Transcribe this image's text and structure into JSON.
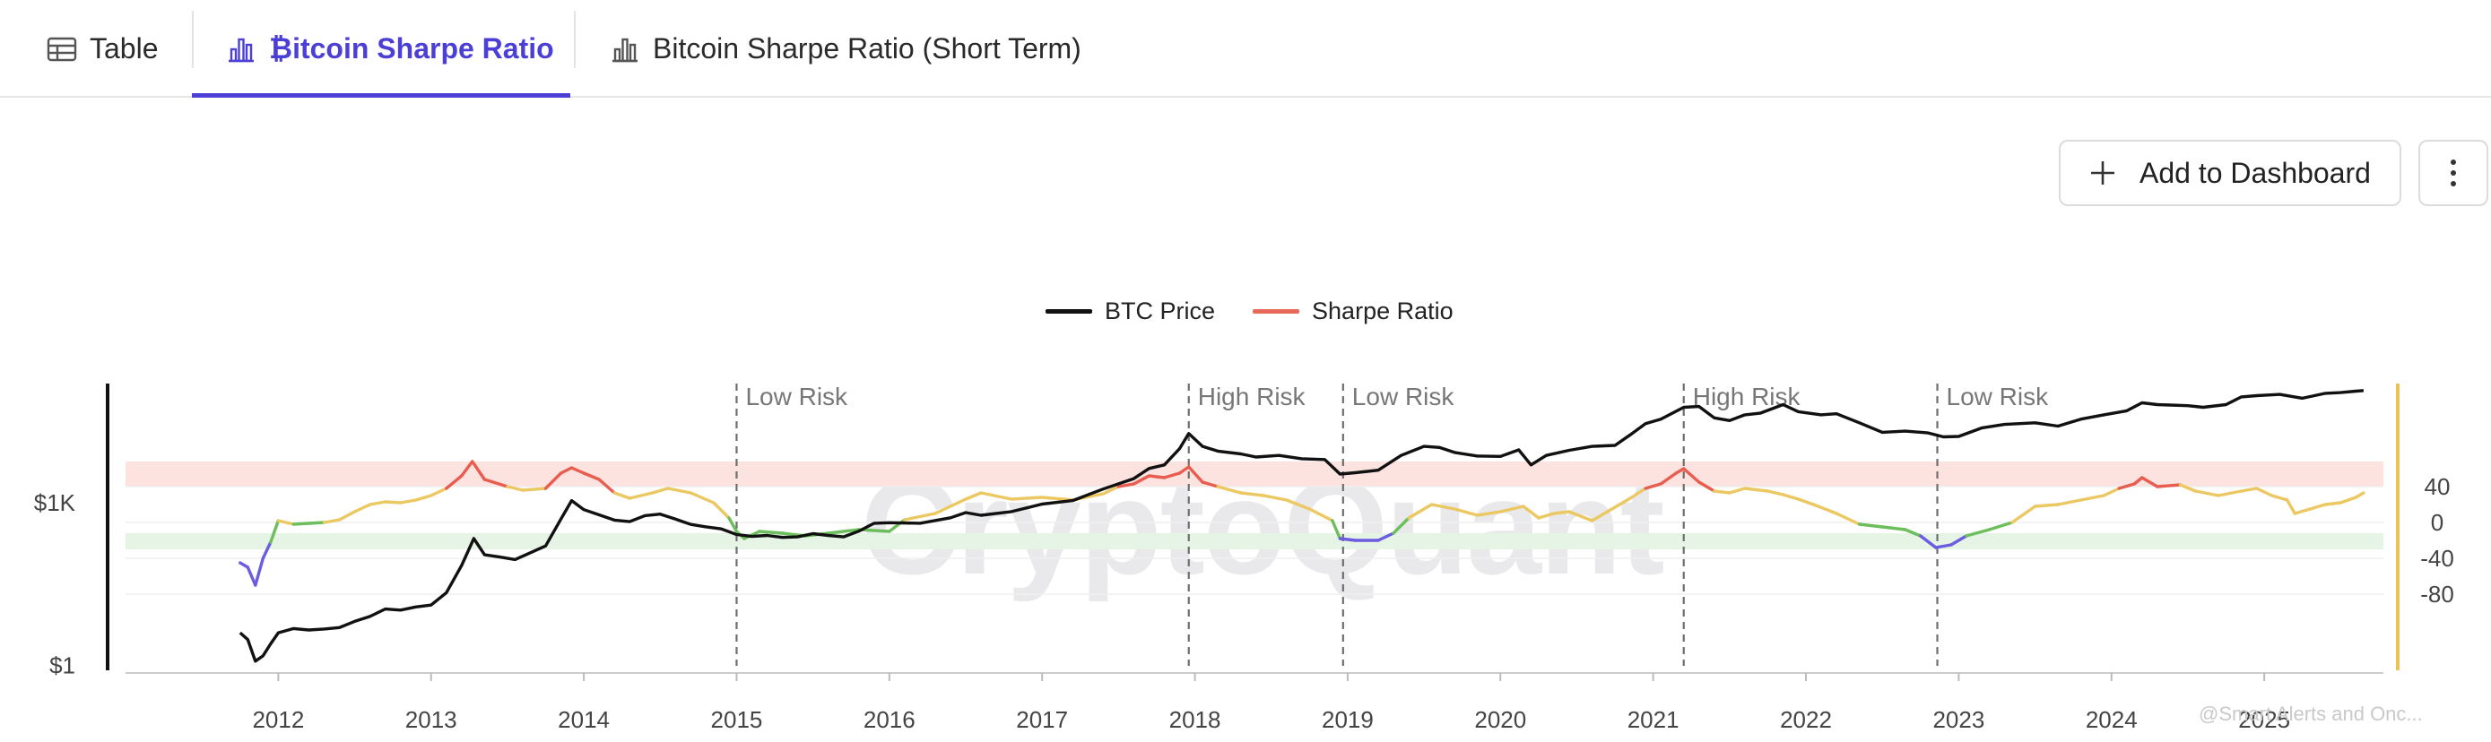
{
  "tabs": [
    {
      "label": "Table",
      "icon": "table-icon"
    },
    {
      "label": "₿itcoin Sharpe Ratio",
      "icon": "bar-chart-icon"
    },
    {
      "label": "Bitcoin Sharpe Ratio (Short Term)",
      "icon": "bar-chart-icon"
    }
  ],
  "toolbar": {
    "add_label": "Add to Dashboard"
  },
  "watermark": "CryptoQuant",
  "footer_text": "@Smart Alerts and Onc...",
  "colors": {
    "accent": "#4b3fd6",
    "price": "#111111",
    "ratio_hot": "#e85d4f",
    "ratio_mid": "#ecc862",
    "ratio_low": "#6cbf5c",
    "ratio_bottom": "#6c5de0",
    "high_band": "#fde3e0",
    "low_band": "#e5f4e5",
    "right_axis": "#eac35a"
  },
  "chart_data": {
    "type": "line",
    "title": "",
    "legend": [
      {
        "name": "BTC Price",
        "color": "#111111"
      },
      {
        "name": "Sharpe Ratio",
        "color": "#e8685a"
      }
    ],
    "x_ticks": [
      "2012",
      "2013",
      "2014",
      "2015",
      "2016",
      "2017",
      "2018",
      "2019",
      "2020",
      "2021",
      "2022",
      "2023",
      "2024",
      "2025"
    ],
    "left_axis": {
      "scale": "log",
      "ticks": [
        "$1K",
        "$1"
      ],
      "tick_values": [
        1000,
        1
      ]
    },
    "right_axis": {
      "ticks": [
        "40",
        "0",
        "-40",
        "-80"
      ],
      "tick_values": [
        40,
        0,
        -40,
        -80
      ]
    },
    "bands": {
      "high_risk": [
        40,
        68
      ],
      "low_risk": [
        -12,
        -30
      ]
    },
    "annotations": [
      {
        "date": 2015.0,
        "label": "Low Risk"
      },
      {
        "date": 2017.96,
        "label": "High Risk"
      },
      {
        "date": 2018.97,
        "label": "Low Risk"
      },
      {
        "date": 2021.2,
        "label": "High Risk"
      },
      {
        "date": 2022.86,
        "label": "Low Risk"
      }
    ],
    "series": [
      {
        "name": "BTC Price",
        "axis": "left",
        "points": [
          [
            2011.75,
            4
          ],
          [
            2011.8,
            3
          ],
          [
            2011.85,
            1.2
          ],
          [
            2011.9,
            1.5
          ],
          [
            2011.95,
            2.5
          ],
          [
            2012.0,
            4
          ],
          [
            2012.1,
            4.8
          ],
          [
            2012.2,
            4.5
          ],
          [
            2012.3,
            4.7
          ],
          [
            2012.4,
            5
          ],
          [
            2012.5,
            6.5
          ],
          [
            2012.6,
            8
          ],
          [
            2012.7,
            11
          ],
          [
            2012.8,
            10.5
          ],
          [
            2012.9,
            12
          ],
          [
            2013.0,
            13
          ],
          [
            2013.1,
            22
          ],
          [
            2013.2,
            70
          ],
          [
            2013.28,
            220
          ],
          [
            2013.35,
            110
          ],
          [
            2013.45,
            100
          ],
          [
            2013.55,
            90
          ],
          [
            2013.65,
            120
          ],
          [
            2013.75,
            160
          ],
          [
            2013.85,
            500
          ],
          [
            2013.92,
            1100
          ],
          [
            2014.0,
            750
          ],
          [
            2014.1,
            600
          ],
          [
            2014.2,
            480
          ],
          [
            2014.3,
            450
          ],
          [
            2014.4,
            580
          ],
          [
            2014.5,
            620
          ],
          [
            2014.6,
            500
          ],
          [
            2014.7,
            400
          ],
          [
            2014.8,
            360
          ],
          [
            2014.9,
            330
          ],
          [
            2015.0,
            260
          ],
          [
            2015.1,
            240
          ],
          [
            2015.2,
            250
          ],
          [
            2015.3,
            230
          ],
          [
            2015.4,
            235
          ],
          [
            2015.5,
            270
          ],
          [
            2015.6,
            250
          ],
          [
            2015.7,
            235
          ],
          [
            2015.8,
            300
          ],
          [
            2015.9,
            420
          ],
          [
            2016.0,
            430
          ],
          [
            2016.2,
            420
          ],
          [
            2016.4,
            530
          ],
          [
            2016.5,
            660
          ],
          [
            2016.6,
            590
          ],
          [
            2016.8,
            690
          ],
          [
            2017.0,
            950
          ],
          [
            2017.2,
            1100
          ],
          [
            2017.4,
            1800
          ],
          [
            2017.6,
            2800
          ],
          [
            2017.7,
            4300
          ],
          [
            2017.8,
            5000
          ],
          [
            2017.9,
            10000
          ],
          [
            2017.96,
            19000
          ],
          [
            2018.05,
            11000
          ],
          [
            2018.15,
            9000
          ],
          [
            2018.3,
            8000
          ],
          [
            2018.4,
            7000
          ],
          [
            2018.55,
            7500
          ],
          [
            2018.7,
            6500
          ],
          [
            2018.85,
            6300
          ],
          [
            2018.95,
            3400
          ],
          [
            2019.05,
            3600
          ],
          [
            2019.2,
            4000
          ],
          [
            2019.35,
            7500
          ],
          [
            2019.5,
            11000
          ],
          [
            2019.6,
            10500
          ],
          [
            2019.7,
            8500
          ],
          [
            2019.85,
            7300
          ],
          [
            2020.0,
            7200
          ],
          [
            2020.12,
            9500
          ],
          [
            2020.2,
            5000
          ],
          [
            2020.3,
            7500
          ],
          [
            2020.45,
            9300
          ],
          [
            2020.6,
            11000
          ],
          [
            2020.75,
            11500
          ],
          [
            2020.85,
            18000
          ],
          [
            2020.95,
            29000
          ],
          [
            2021.05,
            35000
          ],
          [
            2021.2,
            58000
          ],
          [
            2021.3,
            60000
          ],
          [
            2021.4,
            37000
          ],
          [
            2021.5,
            33000
          ],
          [
            2021.6,
            42000
          ],
          [
            2021.7,
            45000
          ],
          [
            2021.85,
            65000
          ],
          [
            2021.95,
            48000
          ],
          [
            2022.1,
            42000
          ],
          [
            2022.2,
            44000
          ],
          [
            2022.35,
            30000
          ],
          [
            2022.5,
            20000
          ],
          [
            2022.65,
            21000
          ],
          [
            2022.8,
            19500
          ],
          [
            2022.9,
            16500
          ],
          [
            2023.0,
            16800
          ],
          [
            2023.15,
            24000
          ],
          [
            2023.3,
            28000
          ],
          [
            2023.5,
            30000
          ],
          [
            2023.65,
            26000
          ],
          [
            2023.8,
            35000
          ],
          [
            2023.95,
            42000
          ],
          [
            2024.1,
            50000
          ],
          [
            2024.2,
            70000
          ],
          [
            2024.3,
            65000
          ],
          [
            2024.5,
            62000
          ],
          [
            2024.6,
            58000
          ],
          [
            2024.75,
            65000
          ],
          [
            2024.85,
            90000
          ],
          [
            2024.95,
            95000
          ],
          [
            2025.1,
            100000
          ],
          [
            2025.25,
            85000
          ],
          [
            2025.4,
            105000
          ],
          [
            2025.5,
            108000
          ],
          [
            2025.6,
            115000
          ],
          [
            2025.65,
            118000
          ]
        ]
      },
      {
        "name": "Sharpe Ratio",
        "axis": "right",
        "points": [
          [
            2011.75,
            -45
          ],
          [
            2011.8,
            -50
          ],
          [
            2011.85,
            -70
          ],
          [
            2011.9,
            -40
          ],
          [
            2011.95,
            -22
          ],
          [
            2012.0,
            2
          ],
          [
            2012.1,
            -2
          ],
          [
            2012.2,
            -1
          ],
          [
            2012.3,
            0
          ],
          [
            2012.4,
            3
          ],
          [
            2012.5,
            12
          ],
          [
            2012.6,
            20
          ],
          [
            2012.7,
            23
          ],
          [
            2012.8,
            22
          ],
          [
            2012.9,
            25
          ],
          [
            2013.0,
            30
          ],
          [
            2013.1,
            38
          ],
          [
            2013.2,
            52
          ],
          [
            2013.27,
            68
          ],
          [
            2013.35,
            48
          ],
          [
            2013.5,
            40
          ],
          [
            2013.6,
            36
          ],
          [
            2013.75,
            38
          ],
          [
            2013.85,
            55
          ],
          [
            2013.92,
            61
          ],
          [
            2014.0,
            55
          ],
          [
            2014.1,
            48
          ],
          [
            2014.2,
            33
          ],
          [
            2014.3,
            27
          ],
          [
            2014.45,
            33
          ],
          [
            2014.55,
            38
          ],
          [
            2014.7,
            33
          ],
          [
            2014.85,
            22
          ],
          [
            2014.95,
            5
          ],
          [
            2015.0,
            -10
          ],
          [
            2015.05,
            -18
          ],
          [
            2015.15,
            -10
          ],
          [
            2015.3,
            -12
          ],
          [
            2015.45,
            -15
          ],
          [
            2015.6,
            -12
          ],
          [
            2015.8,
            -8
          ],
          [
            2016.0,
            -10
          ],
          [
            2016.1,
            3
          ],
          [
            2016.3,
            10
          ],
          [
            2016.5,
            26
          ],
          [
            2016.6,
            33
          ],
          [
            2016.8,
            26
          ],
          [
            2017.0,
            28
          ],
          [
            2017.2,
            25
          ],
          [
            2017.4,
            32
          ],
          [
            2017.5,
            40
          ],
          [
            2017.6,
            43
          ],
          [
            2017.7,
            52
          ],
          [
            2017.8,
            50
          ],
          [
            2017.9,
            55
          ],
          [
            2017.96,
            62
          ],
          [
            2018.05,
            45
          ],
          [
            2018.15,
            40
          ],
          [
            2018.3,
            33
          ],
          [
            2018.45,
            30
          ],
          [
            2018.6,
            25
          ],
          [
            2018.75,
            15
          ],
          [
            2018.9,
            2
          ],
          [
            2018.95,
            -18
          ],
          [
            2019.05,
            -20
          ],
          [
            2019.2,
            -20
          ],
          [
            2019.3,
            -12
          ],
          [
            2019.4,
            5
          ],
          [
            2019.55,
            20
          ],
          [
            2019.7,
            15
          ],
          [
            2019.85,
            8
          ],
          [
            2020.0,
            12
          ],
          [
            2020.15,
            18
          ],
          [
            2020.25,
            5
          ],
          [
            2020.35,
            10
          ],
          [
            2020.45,
            12
          ],
          [
            2020.6,
            2
          ],
          [
            2020.7,
            12
          ],
          [
            2020.85,
            27
          ],
          [
            2020.95,
            38
          ],
          [
            2021.05,
            43
          ],
          [
            2021.15,
            55
          ],
          [
            2021.2,
            60
          ],
          [
            2021.3,
            45
          ],
          [
            2021.4,
            35
          ],
          [
            2021.5,
            33
          ],
          [
            2021.6,
            38
          ],
          [
            2021.75,
            35
          ],
          [
            2021.85,
            31
          ],
          [
            2021.95,
            26
          ],
          [
            2022.05,
            20
          ],
          [
            2022.2,
            10
          ],
          [
            2022.35,
            -2
          ],
          [
            2022.5,
            -5
          ],
          [
            2022.65,
            -8
          ],
          [
            2022.75,
            -15
          ],
          [
            2022.85,
            -28
          ],
          [
            2022.95,
            -25
          ],
          [
            2023.05,
            -15
          ],
          [
            2023.2,
            -8
          ],
          [
            2023.35,
            0
          ],
          [
            2023.5,
            18
          ],
          [
            2023.65,
            20
          ],
          [
            2023.8,
            25
          ],
          [
            2023.95,
            30
          ],
          [
            2024.05,
            38
          ],
          [
            2024.15,
            43
          ],
          [
            2024.2,
            50
          ],
          [
            2024.3,
            40
          ],
          [
            2024.45,
            42
          ],
          [
            2024.55,
            35
          ],
          [
            2024.7,
            30
          ],
          [
            2024.85,
            35
          ],
          [
            2024.95,
            38
          ],
          [
            2025.05,
            30
          ],
          [
            2025.15,
            25
          ],
          [
            2025.2,
            10
          ],
          [
            2025.3,
            15
          ],
          [
            2025.4,
            20
          ],
          [
            2025.5,
            22
          ],
          [
            2025.6,
            28
          ],
          [
            2025.65,
            33
          ]
        ]
      }
    ]
  }
}
